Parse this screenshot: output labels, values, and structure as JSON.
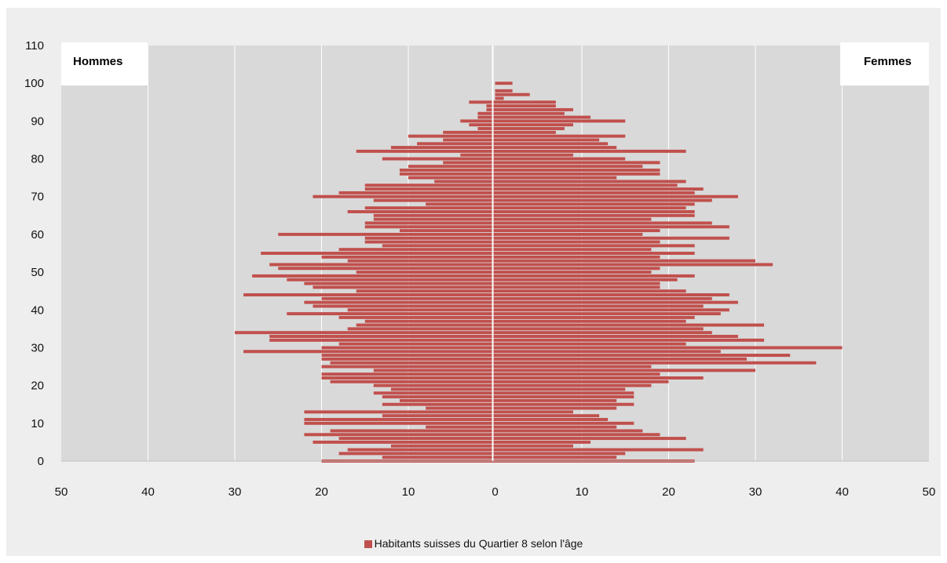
{
  "chart_data": {
    "type": "bar",
    "orientation": "horizontal-population-pyramid",
    "left_label": "Hommes",
    "right_label": "Femmes",
    "legend": [
      {
        "label": "Habitants suisses du Quartier 8 selon l'âge",
        "color": "#c0504d"
      }
    ],
    "legend_position": "bottom",
    "x_ticks": [
      "50",
      "40",
      "30",
      "20",
      "10",
      "0",
      "10",
      "20",
      "30",
      "40",
      "50"
    ],
    "x_range": [
      -50,
      50
    ],
    "y_ticks": [
      "0",
      "10",
      "20",
      "30",
      "40",
      "50",
      "60",
      "70",
      "80",
      "90",
      "100",
      "110"
    ],
    "y_range": [
      0,
      110
    ],
    "grid": true,
    "ages": [
      0,
      1,
      2,
      3,
      4,
      5,
      6,
      7,
      8,
      9,
      10,
      11,
      12,
      13,
      14,
      15,
      16,
      17,
      18,
      19,
      20,
      21,
      22,
      23,
      24,
      25,
      26,
      27,
      28,
      29,
      30,
      31,
      32,
      33,
      34,
      35,
      36,
      37,
      38,
      39,
      40,
      41,
      42,
      43,
      44,
      45,
      46,
      47,
      48,
      49,
      50,
      51,
      52,
      53,
      54,
      55,
      56,
      57,
      58,
      59,
      60,
      61,
      62,
      63,
      64,
      65,
      66,
      67,
      68,
      69,
      70,
      71,
      72,
      73,
      74,
      75,
      76,
      77,
      78,
      79,
      80,
      81,
      82,
      83,
      84,
      85,
      86,
      87,
      88,
      89,
      90,
      91,
      92,
      93,
      94,
      95,
      96,
      97,
      98,
      99,
      100
    ],
    "series": [
      {
        "name": "Hommes",
        "values": [
          20,
          13,
          18,
          17,
          12,
          21,
          18,
          22,
          19,
          8,
          22,
          22,
          13,
          22,
          8,
          13,
          11,
          13,
          14,
          12,
          14,
          19,
          20,
          20,
          14,
          20,
          19,
          20,
          20,
          29,
          20,
          18,
          26,
          26,
          30,
          17,
          16,
          15,
          18,
          24,
          17,
          21,
          22,
          20,
          29,
          16,
          21,
          22,
          24,
          28,
          16,
          25,
          26,
          17,
          20,
          27,
          18,
          13,
          15,
          15,
          25,
          11,
          15,
          15,
          14,
          14,
          17,
          15,
          8,
          14,
          21,
          18,
          15,
          15,
          7,
          10,
          11,
          11,
          10,
          6,
          13,
          4,
          16,
          12,
          9,
          6,
          10,
          6,
          2,
          3,
          4,
          2,
          2,
          1,
          1,
          3,
          0,
          0,
          0,
          0,
          0
        ]
      },
      {
        "name": "Femmes",
        "values": [
          23,
          14,
          15,
          24,
          9,
          11,
          22,
          19,
          17,
          14,
          16,
          13,
          12,
          9,
          14,
          16,
          14,
          16,
          16,
          15,
          18,
          20,
          24,
          19,
          30,
          18,
          37,
          29,
          34,
          26,
          40,
          22,
          31,
          28,
          25,
          24,
          31,
          22,
          23,
          26,
          27,
          24,
          28,
          25,
          27,
          22,
          19,
          19,
          21,
          23,
          18,
          19,
          32,
          30,
          19,
          23,
          18,
          23,
          19,
          27,
          17,
          19,
          27,
          25,
          18,
          23,
          23,
          22,
          23,
          25,
          28,
          23,
          24,
          21,
          22,
          14,
          19,
          19,
          17,
          19,
          15,
          9,
          22,
          14,
          13,
          12,
          15,
          7,
          8,
          9,
          15,
          11,
          8,
          9,
          7,
          7,
          1,
          4,
          2,
          0,
          2
        ]
      }
    ]
  }
}
